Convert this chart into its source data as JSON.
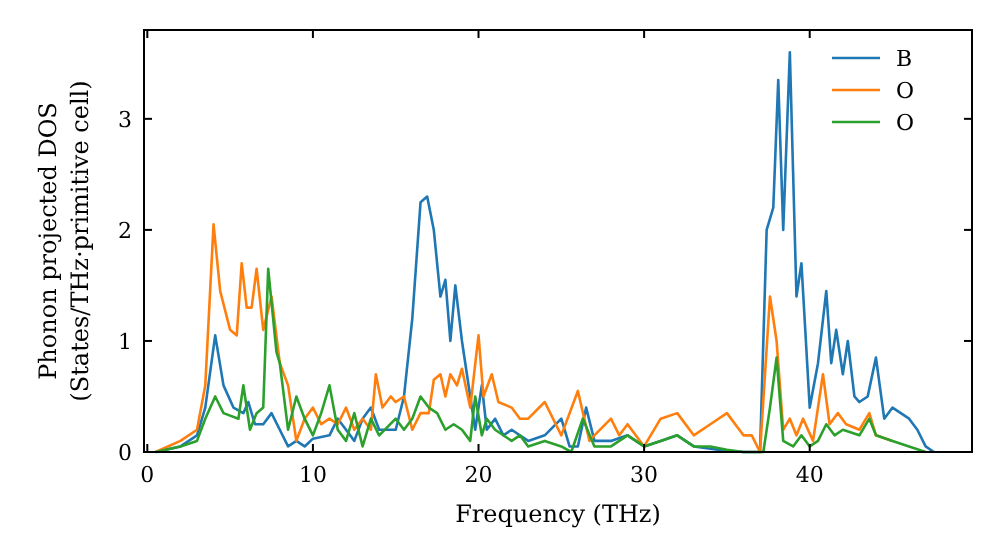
{
  "chart_data": {
    "type": "line",
    "xlabel": "Frequency (THz)",
    "ylabel": "Phonon projected DOS\n(States/THz·primitive cell)",
    "xlim": [
      -0.2,
      49.8
    ],
    "ylim": [
      0,
      3.8
    ],
    "xticks": [
      0,
      10,
      20,
      30,
      40
    ],
    "yticks": [
      0,
      1,
      2,
      3
    ],
    "grid": false,
    "legend": "top right",
    "series": [
      {
        "name": "B",
        "color": "#1f77b4",
        "x": [
          0.5,
          2,
          3,
          3.5,
          4.1,
          4.6,
          5.2,
          5.8,
          6.1,
          6.5,
          7,
          7.5,
          8,
          8.5,
          9,
          9.5,
          10,
          11,
          11.5,
          12,
          12.5,
          13,
          13.5,
          14,
          15,
          15.5,
          16,
          16.5,
          16.9,
          17.3,
          17.7,
          18,
          18.3,
          18.6,
          19,
          19.5,
          19.8,
          20.2,
          20.5,
          21,
          21.5,
          22,
          23,
          24,
          25,
          25.5,
          26,
          26.5,
          27,
          28,
          29,
          30,
          31,
          32,
          33,
          34,
          35,
          36,
          37,
          37.4,
          37.8,
          38.1,
          38.4,
          38.8,
          39.2,
          39.5,
          40,
          40.5,
          41,
          41.3,
          41.6,
          42,
          42.3,
          42.7,
          43,
          43.5,
          44,
          44.5,
          45,
          46,
          46.5,
          47,
          47.5
        ],
        "values": [
          0,
          0.05,
          0.15,
          0.4,
          1.05,
          0.6,
          0.4,
          0.35,
          0.45,
          0.25,
          0.25,
          0.35,
          0.2,
          0.05,
          0.1,
          0.05,
          0.12,
          0.15,
          0.3,
          0.2,
          0.1,
          0.3,
          0.4,
          0.2,
          0.2,
          0.5,
          1.2,
          2.25,
          2.3,
          2,
          1.4,
          1.55,
          1,
          1.5,
          1,
          0.5,
          0.2,
          0.6,
          0.2,
          0.3,
          0.15,
          0.2,
          0.1,
          0.15,
          0.3,
          0.05,
          0.05,
          0.4,
          0.1,
          0.1,
          0.15,
          0.05,
          0.1,
          0.15,
          0.05,
          0.03,
          0.01,
          0,
          0,
          2,
          2.2,
          3.35,
          2,
          3.6,
          1.4,
          1.7,
          0.4,
          0.8,
          1.45,
          0.8,
          1.1,
          0.7,
          1,
          0.5,
          0.45,
          0.5,
          0.85,
          0.3,
          0.4,
          0.3,
          0.2,
          0.05,
          0
        ]
      },
      {
        "name": "O",
        "color": "#ff7f0e",
        "x": [
          0.5,
          2,
          3,
          3.5,
          4,
          4.4,
          5,
          5.4,
          5.7,
          6,
          6.3,
          6.6,
          7,
          7.5,
          8,
          8.5,
          9,
          9.5,
          10,
          10.5,
          11,
          11.5,
          12,
          12.5,
          13,
          13.5,
          13.8,
          14.2,
          14.7,
          15,
          15.5,
          16,
          16.5,
          17,
          17.3,
          17.7,
          18,
          18.3,
          18.7,
          19,
          19.5,
          20,
          20.3,
          20.8,
          21.2,
          22,
          22.5,
          23,
          24,
          25,
          26,
          26.7,
          27,
          28,
          28.5,
          29,
          30,
          31,
          32,
          33,
          34,
          35,
          36,
          36.5,
          37,
          37.6,
          38,
          38.4,
          38.8,
          39.2,
          39.6,
          40.2,
          40.8,
          41.2,
          41.7,
          42.2,
          43,
          43.6,
          44,
          45
        ],
        "values": [
          0,
          0.1,
          0.2,
          0.6,
          2.05,
          1.45,
          1.1,
          1.05,
          1.7,
          1.3,
          1.3,
          1.65,
          1.1,
          1.4,
          0.8,
          0.6,
          0.1,
          0.3,
          0.4,
          0.25,
          0.3,
          0.25,
          0.4,
          0.2,
          0.3,
          0.2,
          0.7,
          0.4,
          0.5,
          0.45,
          0.5,
          0.2,
          0.35,
          0.35,
          0.65,
          0.7,
          0.5,
          0.7,
          0.6,
          0.75,
          0.4,
          1.05,
          0.5,
          0.7,
          0.45,
          0.4,
          0.3,
          0.3,
          0.45,
          0.15,
          0.55,
          0.1,
          0.15,
          0.3,
          0.15,
          0.25,
          0.05,
          0.3,
          0.35,
          0.15,
          0.25,
          0.35,
          0.15,
          0.15,
          0,
          1.4,
          1,
          0.2,
          0.3,
          0.15,
          0.3,
          0.1,
          0.7,
          0.25,
          0.35,
          0.25,
          0.2,
          0.35,
          0.15,
          0.1
        ]
      },
      {
        "name": "O",
        "color": "#2ca02c",
        "x": [
          0.5,
          2,
          3,
          3.5,
          4.1,
          4.6,
          5.5,
          5.8,
          6.2,
          6.6,
          7,
          7.3,
          7.8,
          8,
          8.5,
          9,
          9.5,
          10,
          10.5,
          11,
          11.5,
          12,
          12.5,
          13,
          13.5,
          14,
          15,
          15.5,
          16,
          16.5,
          17,
          17.5,
          18,
          18.5,
          19,
          19.5,
          19.8,
          20.2,
          20.5,
          21,
          22,
          22.5,
          23,
          24,
          25,
          25.6,
          26.3,
          27,
          28,
          29,
          30,
          31,
          32,
          33,
          34,
          35,
          36,
          37.2,
          37.6,
          38,
          38.4,
          39,
          39.5,
          40,
          40.5,
          41,
          41.5,
          42,
          43,
          43.6,
          44,
          45,
          46,
          47
        ],
        "values": [
          0,
          0.05,
          0.1,
          0.3,
          0.5,
          0.35,
          0.3,
          0.6,
          0.2,
          0.35,
          0.4,
          1.65,
          0.9,
          0.8,
          0.2,
          0.5,
          0.3,
          0.15,
          0.35,
          0.6,
          0.2,
          0.1,
          0.35,
          0.05,
          0.3,
          0.15,
          0.3,
          0.2,
          0.3,
          0.5,
          0.4,
          0.35,
          0.2,
          0.25,
          0.2,
          0.1,
          0.5,
          0.15,
          0.3,
          0.2,
          0.1,
          0.15,
          0.05,
          0.1,
          0.05,
          0,
          0.3,
          0.05,
          0.05,
          0.15,
          0.05,
          0.1,
          0.15,
          0.05,
          0.05,
          0.02,
          0,
          0,
          0.4,
          0.85,
          0.1,
          0.05,
          0.15,
          0.05,
          0.1,
          0.25,
          0.15,
          0.2,
          0.15,
          0.3,
          0.15,
          0.1,
          0.05,
          0
        ]
      }
    ]
  }
}
